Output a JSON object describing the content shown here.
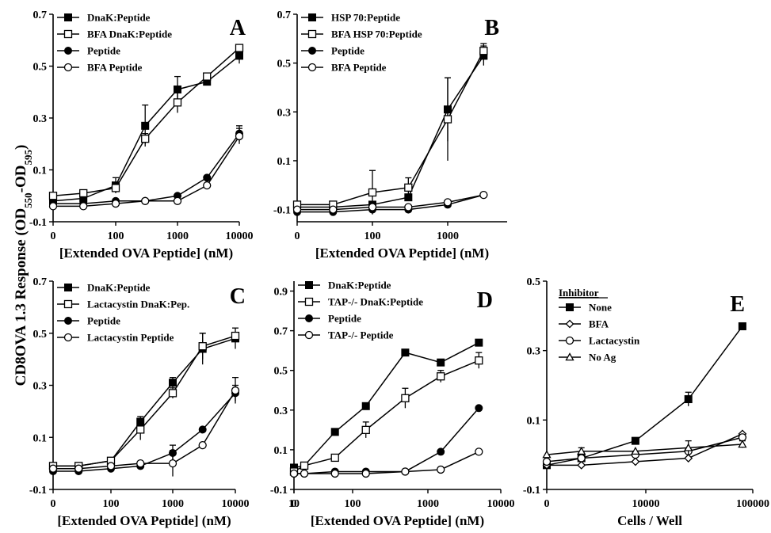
{
  "figure": {
    "ylabel_main": "CD8OVA 1.3 Response (OD",
    "ylabel_sub1": "550",
    "ylabel_mid": "-OD",
    "ylabel_sub2": "595",
    "ylabel_end": ")"
  },
  "chart_data": [
    {
      "panel": "A",
      "type": "line",
      "xlabel": "[Extended OVA Peptide] (nM)",
      "ylabel": "",
      "xticks": [
        "0",
        "100",
        "1000",
        "10000"
      ],
      "yticks": [
        "-0.1",
        "0.1",
        "0.3",
        "0.5",
        "0.7"
      ],
      "xscale": "log (0 at left axis)",
      "ylim": [
        -0.1,
        0.7
      ],
      "legend_position": "top-left",
      "legend_title": "",
      "series": [
        {
          "name": "DnaK:Peptide",
          "marker": "filled-square",
          "x": [
            0,
            30,
            100,
            300,
            1000,
            3000,
            10000
          ],
          "y": [
            -0.02,
            -0.01,
            0.04,
            0.27,
            0.41,
            0.44,
            0.54
          ],
          "err": [
            0,
            0,
            0.03,
            0.08,
            0.05,
            0,
            0.03
          ]
        },
        {
          "name": "BFA DnaK:Peptide",
          "marker": "open-square",
          "x": [
            0,
            30,
            100,
            300,
            1000,
            3000,
            10000
          ],
          "y": [
            0.0,
            0.01,
            0.03,
            0.22,
            0.36,
            0.46,
            0.57
          ],
          "err": [
            0,
            0,
            0,
            0.02,
            0.04,
            0,
            0
          ]
        },
        {
          "name": "Peptide",
          "marker": "filled-circle",
          "x": [
            0,
            30,
            100,
            300,
            1000,
            3000,
            10000
          ],
          "y": [
            -0.03,
            -0.03,
            -0.02,
            -0.02,
            0.0,
            0.07,
            0.24
          ],
          "err": [
            0,
            0,
            0,
            0,
            0,
            0,
            0.03
          ]
        },
        {
          "name": "BFA Peptide",
          "marker": "open-circle",
          "x": [
            0,
            30,
            100,
            300,
            1000,
            3000,
            10000
          ],
          "y": [
            -0.04,
            -0.04,
            -0.03,
            -0.02,
            -0.02,
            0.04,
            0.23
          ],
          "err": [
            0,
            0,
            0,
            0,
            0,
            0,
            0.03
          ]
        }
      ]
    },
    {
      "panel": "B",
      "type": "line",
      "xlabel": "[Extended OVA Peptide] (nM)",
      "ylabel": "",
      "xticks": [
        "0",
        "100",
        "1000"
      ],
      "yticks": [
        "-0.1",
        "0.1",
        "0.3",
        "0.5",
        "0.7"
      ],
      "xscale": "log (0 at left axis)",
      "ylim": [
        -0.15,
        0.7
      ],
      "legend_position": "top-left",
      "legend_title": "",
      "series": [
        {
          "name": "HSP 70:Peptide",
          "marker": "filled-square",
          "x": [
            0,
            30,
            100,
            300,
            1000,
            3000
          ],
          "y": [
            -0.09,
            -0.09,
            -0.08,
            -0.05,
            0.31,
            0.53
          ],
          "err": [
            0,
            0,
            0,
            0,
            0.13,
            0.04
          ]
        },
        {
          "name": "BFA HSP 70:Peptide",
          "marker": "open-square",
          "x": [
            0,
            30,
            100,
            300,
            1000,
            3000
          ],
          "y": [
            -0.08,
            -0.08,
            -0.03,
            -0.01,
            0.27,
            0.55
          ],
          "err": [
            0,
            0,
            0.09,
            0.04,
            0.17,
            0.03
          ]
        },
        {
          "name": "Peptide",
          "marker": "filled-circle",
          "x": [
            0,
            30,
            100,
            300,
            1000,
            3000
          ],
          "y": [
            -0.11,
            -0.11,
            -0.1,
            -0.1,
            -0.08,
            -0.04
          ],
          "err": [
            0,
            0,
            0,
            0,
            0,
            0
          ]
        },
        {
          "name": "BFA Peptide",
          "marker": "open-circle",
          "x": [
            0,
            30,
            100,
            300,
            1000,
            3000
          ],
          "y": [
            -0.1,
            -0.1,
            -0.09,
            -0.09,
            -0.07,
            -0.04
          ],
          "err": [
            0,
            0,
            0,
            0,
            0,
            0
          ]
        }
      ]
    },
    {
      "panel": "C",
      "type": "line",
      "xlabel": "[Extended OVA Peptide] (nM)",
      "ylabel": "",
      "xticks": [
        "0",
        "100",
        "1000",
        "10000"
      ],
      "yticks": [
        "-0.1",
        "0.1",
        "0.3",
        "0.5",
        "0.7"
      ],
      "xscale": "log (0 at left axis)",
      "ylim": [
        -0.1,
        0.7
      ],
      "legend_position": "top-left",
      "legend_title": "",
      "series": [
        {
          "name": "DnaK:Peptide",
          "marker": "filled-square",
          "x": [
            0,
            30,
            100,
            300,
            1000,
            3000,
            10000
          ],
          "y": [
            -0.01,
            -0.01,
            0.01,
            0.16,
            0.31,
            0.44,
            0.48
          ],
          "err": [
            0,
            0,
            0,
            0.02,
            0.02,
            0.06,
            0.04
          ]
        },
        {
          "name": "Lactacystin DnaK:Pep.",
          "marker": "open-square",
          "x": [
            0,
            30,
            100,
            300,
            1000,
            3000,
            10000
          ],
          "y": [
            -0.01,
            -0.01,
            0.01,
            0.13,
            0.27,
            0.45,
            0.49
          ],
          "err": [
            0,
            0,
            0,
            0.04,
            0.02,
            0.05,
            0
          ]
        },
        {
          "name": "Peptide",
          "marker": "filled-circle",
          "x": [
            0,
            30,
            100,
            300,
            1000,
            3000,
            10000
          ],
          "y": [
            -0.03,
            -0.03,
            -0.02,
            -0.01,
            0.04,
            0.13,
            0.27
          ],
          "err": [
            0,
            0,
            0,
            0,
            0.03,
            0,
            0.03
          ]
        },
        {
          "name": "Lactacystin Peptide",
          "marker": "open-circle",
          "x": [
            0,
            30,
            100,
            300,
            1000,
            3000,
            10000
          ],
          "y": [
            -0.02,
            -0.02,
            -0.01,
            0.0,
            0.0,
            0.07,
            0.28
          ],
          "err": [
            0,
            0,
            0,
            0,
            0.05,
            0,
            0.05
          ]
        }
      ]
    },
    {
      "panel": "D",
      "type": "line",
      "xlabel": "[Extended OVA Peptide] (nM)",
      "ylabel": "",
      "xticks": [
        "0",
        "10",
        "100",
        "1000",
        "10000"
      ],
      "yticks": [
        "-0.1",
        "0.1",
        "0.3",
        "0.5",
        "0.7",
        "0.9"
      ],
      "xscale": "log (0 at left axis)",
      "ylim": [
        -0.1,
        0.95
      ],
      "legend_position": "top-left",
      "legend_title": "",
      "series": [
        {
          "name": "DnaK:Peptide",
          "marker": "filled-square",
          "x": [
            0,
            15,
            50,
            150,
            500,
            1500,
            5000
          ],
          "y": [
            0.01,
            0.02,
            0.19,
            0.32,
            0.59,
            0.54,
            0.64
          ],
          "err": [
            0,
            0,
            0,
            0,
            0,
            0,
            0
          ]
        },
        {
          "name": "TAP-/- DnaK:Peptide",
          "marker": "open-square",
          "x": [
            0,
            15,
            50,
            150,
            500,
            1500,
            5000
          ],
          "y": [
            -0.01,
            0.02,
            0.06,
            0.2,
            0.36,
            0.47,
            0.55
          ],
          "err": [
            0,
            0,
            0,
            0.04,
            0.05,
            0.03,
            0.04
          ]
        },
        {
          "name": "Peptide",
          "marker": "filled-circle",
          "x": [
            0,
            15,
            50,
            150,
            500,
            1500,
            5000
          ],
          "y": [
            -0.02,
            -0.02,
            -0.01,
            -0.01,
            -0.01,
            0.09,
            0.31
          ],
          "err": [
            0,
            0,
            0,
            0,
            0,
            0,
            0
          ]
        },
        {
          "name": "TAP-/- Peptide",
          "marker": "open-circle",
          "x": [
            0,
            15,
            50,
            150,
            500,
            1500,
            5000
          ],
          "y": [
            -0.02,
            -0.02,
            -0.02,
            -0.02,
            -0.01,
            0.0,
            0.09
          ],
          "err": [
            0,
            0,
            0,
            0,
            0,
            0,
            0
          ]
        }
      ]
    },
    {
      "panel": "E",
      "type": "line",
      "xlabel": "Cells / Well",
      "ylabel": "",
      "xticks": [
        "0",
        "10000",
        "100000"
      ],
      "yticks": [
        "-0.1",
        "0.1",
        "0.3",
        "0.5"
      ],
      "xscale": "log (0 at left axis)",
      "ylim": [
        -0.1,
        0.5
      ],
      "legend_position": "top-left",
      "legend_title": "Inhibitor",
      "series": [
        {
          "name": "None",
          "marker": "filled-square",
          "x": [
            0,
            2500,
            8000,
            25000,
            80000
          ],
          "y": [
            -0.03,
            -0.01,
            0.04,
            0.16,
            0.37
          ],
          "err": [
            0,
            0,
            0,
            0.02,
            0
          ]
        },
        {
          "name": "BFA",
          "marker": "open-diamond",
          "x": [
            0,
            2500,
            8000,
            25000,
            80000
          ],
          "y": [
            -0.03,
            -0.03,
            -0.02,
            -0.01,
            0.06
          ],
          "err": [
            0,
            0,
            0,
            0,
            0
          ]
        },
        {
          "name": "Lactacystin",
          "marker": "open-circle",
          "x": [
            0,
            2500,
            8000,
            25000,
            80000
          ],
          "y": [
            -0.02,
            -0.01,
            0.0,
            0.01,
            0.05
          ],
          "err": [
            0,
            0,
            0,
            0,
            0
          ]
        },
        {
          "name": "No Ag",
          "marker": "open-triangle",
          "x": [
            0,
            2500,
            8000,
            25000,
            80000
          ],
          "y": [
            0.0,
            0.01,
            0.01,
            0.02,
            0.03
          ],
          "err": [
            0,
            0.01,
            0,
            0.02,
            0.01
          ]
        }
      ]
    }
  ]
}
